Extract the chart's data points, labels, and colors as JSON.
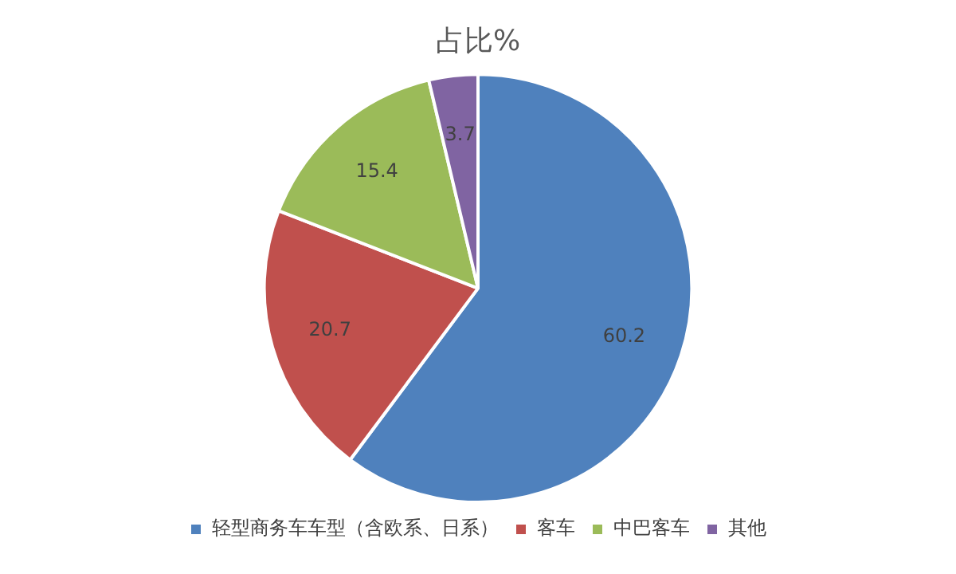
{
  "chart_data": {
    "type": "pie",
    "title": "占比%",
    "categories": [
      "轻型商务车车型（含欧系、日系）",
      "客车",
      "中巴客车",
      "其他"
    ],
    "values": [
      60.2,
      20.7,
      15.4,
      3.7
    ],
    "colors": [
      "#4f81bd",
      "#c0504d",
      "#9bbb59",
      "#8064a2"
    ],
    "data_labels": true,
    "legend": "bottom"
  }
}
